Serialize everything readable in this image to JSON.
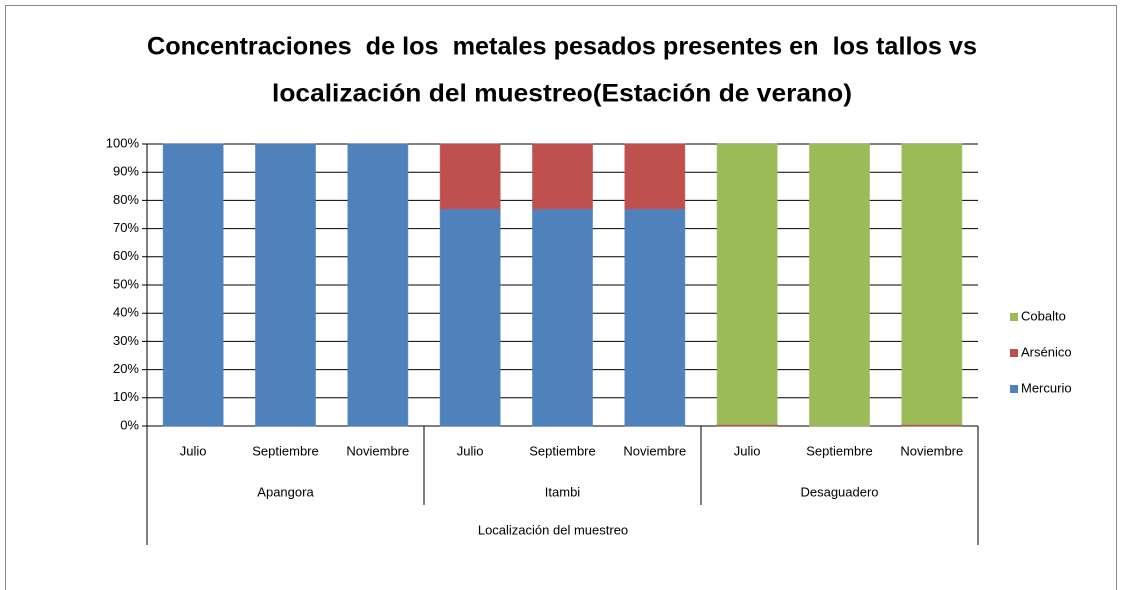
{
  "chart_data": {
    "type": "stacked_bar_100",
    "title": [
      "Concentraciones  de los  metales pesados presentes en  los tallos vs",
      "localización del muestreo(Estación de verano)"
    ],
    "x_label": "Localización del muestreo",
    "category_groups": [
      {
        "name": "Apangora",
        "categories": [
          "Julio",
          "Septiembre",
          "Noviembre"
        ]
      },
      {
        "name": "Itambi",
        "categories": [
          "Julio",
          "Septiembre",
          "Noviembre"
        ]
      },
      {
        "name": "Desaguadero",
        "categories": [
          "Julio",
          "Septiembre",
          "Noviembre"
        ]
      }
    ],
    "series": [
      {
        "name": "Mercurio",
        "color": "#4f81bd",
        "values": [
          100,
          100,
          100,
          77,
          77,
          77,
          0,
          0,
          0
        ]
      },
      {
        "name": "Arsénico",
        "color": "#c0504d",
        "values": [
          0,
          0,
          0,
          23,
          23,
          23,
          0.5,
          0,
          0.5
        ]
      },
      {
        "name": "Cobalto",
        "color": "#9bbb59",
        "values": [
          0,
          0,
          0,
          0,
          0,
          0,
          99.5,
          100,
          99.5
        ]
      }
    ],
    "ylim": [
      0,
      100
    ],
    "yticks": [
      {
        "value": 0,
        "label": "0%"
      },
      {
        "value": 10,
        "label": "10%"
      },
      {
        "value": 20,
        "label": "20%"
      },
      {
        "value": 30,
        "label": "30%"
      },
      {
        "value": 40,
        "label": "40%"
      },
      {
        "value": 50,
        "label": "50%"
      },
      {
        "value": 60,
        "label": "60%"
      },
      {
        "value": 70,
        "label": "70%"
      },
      {
        "value": 80,
        "label": "80%"
      },
      {
        "value": 90,
        "label": "90%"
      },
      {
        "value": 100,
        "label": "100%"
      }
    ],
    "grid": true,
    "legend": "right"
  }
}
